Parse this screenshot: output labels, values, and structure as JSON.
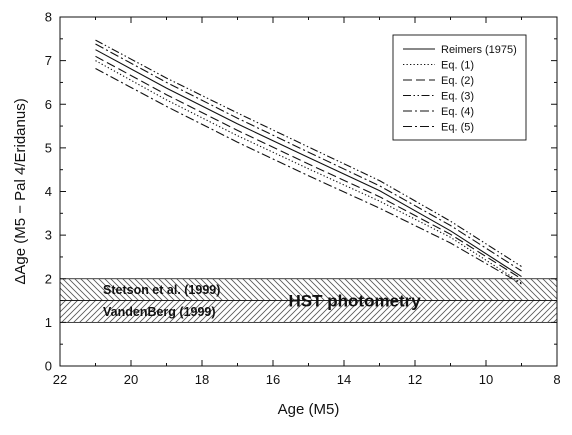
{
  "chart_data": {
    "type": "line",
    "xlabel": "Age (M5)",
    "ylabel": "ΔAge (M5 − Pal 4/Eridanus)",
    "xlim": [
      22,
      8
    ],
    "ylim": [
      0,
      8
    ],
    "x_reversed": true,
    "x_ticks": [
      22,
      20,
      18,
      16,
      14,
      12,
      10,
      8
    ],
    "y_ticks": [
      0,
      1,
      2,
      3,
      4,
      5,
      6,
      7,
      8
    ],
    "grid": false,
    "legend_position": "top-right",
    "series": [
      {
        "name": "Reimers (1975)",
        "style": "solid",
        "points": [
          [
            21.0,
            7.25
          ],
          [
            19.0,
            6.37
          ],
          [
            17.0,
            5.55
          ],
          [
            15.0,
            4.78
          ],
          [
            13.0,
            4.02
          ],
          [
            11.0,
            3.1
          ],
          [
            9.0,
            2.05
          ]
        ]
      },
      {
        "name": "Eq. (1)",
        "style": "dotted",
        "points": [
          [
            21.0,
            7.0
          ],
          [
            19.0,
            6.1
          ],
          [
            17.0,
            5.28
          ],
          [
            15.0,
            4.52
          ],
          [
            13.0,
            3.78
          ],
          [
            11.0,
            2.95
          ],
          [
            9.0,
            1.9
          ]
        ]
      },
      {
        "name": "Eq. (2)",
        "style": "longdash",
        "points": [
          [
            21.0,
            7.1
          ],
          [
            19.0,
            6.22
          ],
          [
            17.0,
            5.4
          ],
          [
            15.0,
            4.63
          ],
          [
            13.0,
            3.88
          ],
          [
            11.0,
            3.02
          ],
          [
            9.0,
            2.0
          ]
        ]
      },
      {
        "name": "Eq. (3)",
        "style": "dashdotdot",
        "points": [
          [
            21.0,
            7.47
          ],
          [
            19.0,
            6.6
          ],
          [
            17.0,
            5.8
          ],
          [
            15.0,
            5.02
          ],
          [
            13.0,
            4.25
          ],
          [
            11.0,
            3.32
          ],
          [
            9.0,
            2.28
          ]
        ]
      },
      {
        "name": "Eq. (4)",
        "style": "dashdot",
        "points": [
          [
            21.0,
            6.82
          ],
          [
            19.0,
            5.95
          ],
          [
            17.0,
            5.13
          ],
          [
            15.0,
            4.36
          ],
          [
            13.0,
            3.62
          ],
          [
            11.0,
            2.82
          ],
          [
            9.0,
            1.88
          ]
        ]
      },
      {
        "name": "Eq. (5)",
        "style": "dashdot",
        "points": [
          [
            21.0,
            7.38
          ],
          [
            19.0,
            6.5
          ],
          [
            17.0,
            5.68
          ],
          [
            15.0,
            4.9
          ],
          [
            13.0,
            4.13
          ],
          [
            11.0,
            3.22
          ],
          [
            9.0,
            2.18
          ]
        ]
      }
    ],
    "bands": [
      {
        "label": "Stetson et al. (1999)",
        "y0": 1.5,
        "y1": 2.0,
        "hatch": "backslash"
      },
      {
        "label": "VandenBerg (1999)",
        "y0": 1.0,
        "y1": 1.5,
        "hatch": "slash"
      }
    ],
    "annotation": "HST photometry"
  }
}
